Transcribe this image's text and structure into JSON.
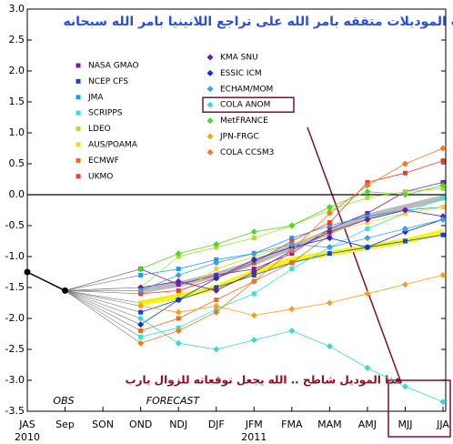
{
  "chart_data": {
    "type": "line",
    "title": "أغلب الموديلات متفقه بامر الله على تراجع اللانينيا بامر الله سبحانه",
    "annotation": "هذا الموديل شاطح .. الله يجعل توقعاته للزوال يارب",
    "obs_label": "OBS",
    "forecast_label": "FORECAST",
    "categories": [
      "JAS",
      "Sep",
      "SON",
      "OND",
      "NDJ",
      "DJF",
      "JFM",
      "FMA",
      "MAM",
      "AMJ",
      "MJJ",
      "JJA"
    ],
    "x_years": [
      "2010",
      null,
      null,
      null,
      null,
      null,
      "2011",
      null,
      null,
      null,
      null,
      null
    ],
    "ylim": [
      -3.5,
      3.0
    ],
    "yticks": [
      {
        "value": 3.0,
        "label": "3.0"
      },
      2.5,
      {
        "value": 2.0,
        "label": "2.0"
      },
      1.5,
      {
        "value": 1.0,
        "label": "1.0"
      },
      0.5,
      {
        "value": 0.0,
        "label": "0.0"
      },
      -0.5,
      {
        "value": -1.0,
        "label": "-1.0"
      },
      -1.5,
      {
        "value": -2.0,
        "label": "-2.0"
      },
      -2.5,
      {
        "value": -3.0,
        "label": "-3.0"
      },
      -3.5
    ],
    "grid": false,
    "obs": {
      "color": "#000000",
      "values": [
        -1.25,
        -1.55,
        null,
        null,
        null,
        null,
        null,
        null,
        null,
        null,
        null,
        null
      ]
    },
    "series": [
      {
        "name": "NASA GMAO",
        "color": "#7b1fa2",
        "marker": "square",
        "values": [
          null,
          null,
          null,
          -1.2,
          -1.45,
          -1.3,
          -1.2,
          -0.95,
          -0.55,
          -0.3,
          0.05,
          0.2
        ]
      },
      {
        "name": "NCEP CFS",
        "color": "#1a3fd8",
        "marker": "square",
        "values": [
          null,
          null,
          null,
          -1.9,
          -1.7,
          -1.5,
          -1.3,
          -1.1,
          -0.95,
          -0.85,
          -0.75,
          -0.65
        ]
      },
      {
        "name": "JMA",
        "color": "#1e9be8",
        "marker": "square",
        "values": [
          null,
          null,
          null,
          -1.3,
          -1.2,
          -1.05,
          -0.95,
          -0.7,
          -0.5,
          -0.35,
          -0.25,
          -0.2
        ]
      },
      {
        "name": "SCRIPPS",
        "color": "#33e6c8",
        "marker": "square",
        "values": [
          null,
          null,
          null,
          -2.3,
          -2.15,
          -1.85,
          -1.6,
          -1.2,
          -0.85,
          -0.55,
          -0.3,
          -0.05
        ]
      },
      {
        "name": "LDEO",
        "color": "#a8e02a",
        "marker": "square",
        "values": [
          null,
          null,
          null,
          -1.5,
          -1.0,
          -0.85,
          -0.7,
          -0.5,
          -0.25,
          -0.05,
          0.05,
          0.1
        ]
      },
      {
        "name": "AUS/POAMA",
        "color": "#f2d61c",
        "marker": "square",
        "values": [
          null,
          null,
          null,
          -1.75,
          -1.6,
          -1.2,
          -1.0,
          -0.8,
          -0.6,
          -0.45,
          -0.3,
          -0.2
        ]
      },
      {
        "name": "ECMWF",
        "color": "#ee6a1a",
        "marker": "square",
        "values": [
          null,
          null,
          null,
          -2.2,
          -2.0,
          -1.7,
          -1.4,
          -1.1,
          -0.65,
          null,
          null,
          null
        ]
      },
      {
        "name": "UKMO",
        "color": "#e8402a",
        "marker": "square",
        "values": [
          null,
          null,
          null,
          -1.6,
          -1.55,
          -1.35,
          -1.1,
          -0.75,
          -0.45,
          0.2,
          0.35,
          0.55
        ]
      },
      {
        "name": "KMA SNU",
        "color": "#6a1fa8",
        "marker": "diamond",
        "values": [
          null,
          null,
          null,
          -1.5,
          -1.4,
          -1.55,
          -1.25,
          -0.9,
          -0.6,
          -0.4,
          -0.25,
          -0.35
        ]
      },
      {
        "name": "ESSIC ICM",
        "color": "#1030e0",
        "marker": "diamond",
        "values": [
          null,
          null,
          null,
          -2.1,
          -1.7,
          -1.35,
          -1.05,
          -0.85,
          -0.7,
          -0.85,
          -0.6,
          -0.4
        ]
      },
      {
        "name": "ECHAM/MOM",
        "color": "#3aa0e8",
        "marker": "diamond",
        "values": [
          null,
          null,
          null,
          -1.55,
          -1.3,
          -1.1,
          -0.95,
          -0.8,
          -0.85,
          -0.7,
          -0.55,
          -0.4
        ]
      },
      {
        "name": "COLA ANOM",
        "color": "#3ad9d0",
        "marker": "diamond",
        "values": [
          null,
          null,
          null,
          -2.0,
          -2.4,
          -2.5,
          -2.35,
          -2.2,
          -2.45,
          -2.8,
          -3.1,
          -3.35
        ]
      },
      {
        "name": "MetFRANCE",
        "color": "#4fd62a",
        "marker": "diamond",
        "values": [
          null,
          null,
          null,
          -1.2,
          -0.95,
          -0.8,
          -0.6,
          -0.5,
          -0.2,
          0.05,
          0.0,
          0.15
        ]
      },
      {
        "name": "JPN-FRGC",
        "color": "#f2a21c",
        "marker": "diamond",
        "values": [
          null,
          null,
          null,
          -1.8,
          -1.9,
          -1.8,
          -1.95,
          -1.85,
          -1.75,
          -1.6,
          -1.45,
          -1.3
        ]
      },
      {
        "name": "COLA CCSM3",
        "color": "#ee7a22",
        "marker": "diamond",
        "values": [
          null,
          null,
          null,
          -2.4,
          -2.2,
          -1.9,
          -1.4,
          -0.9,
          -0.3,
          0.15,
          0.5,
          0.75
        ]
      }
    ],
    "averages": [
      {
        "color": "#f5f51a",
        "values": [
          null,
          null,
          null,
          -1.75,
          -1.65,
          -1.5,
          -1.25,
          -1.05,
          -0.95,
          -0.85,
          -0.75,
          -0.6
        ]
      },
      {
        "color": "#bbbbbb",
        "values": [
          null,
          null,
          null,
          -1.55,
          -1.45,
          -1.3,
          -1.1,
          -0.85,
          -0.6,
          -0.35,
          -0.2,
          -0.05
        ]
      }
    ]
  }
}
